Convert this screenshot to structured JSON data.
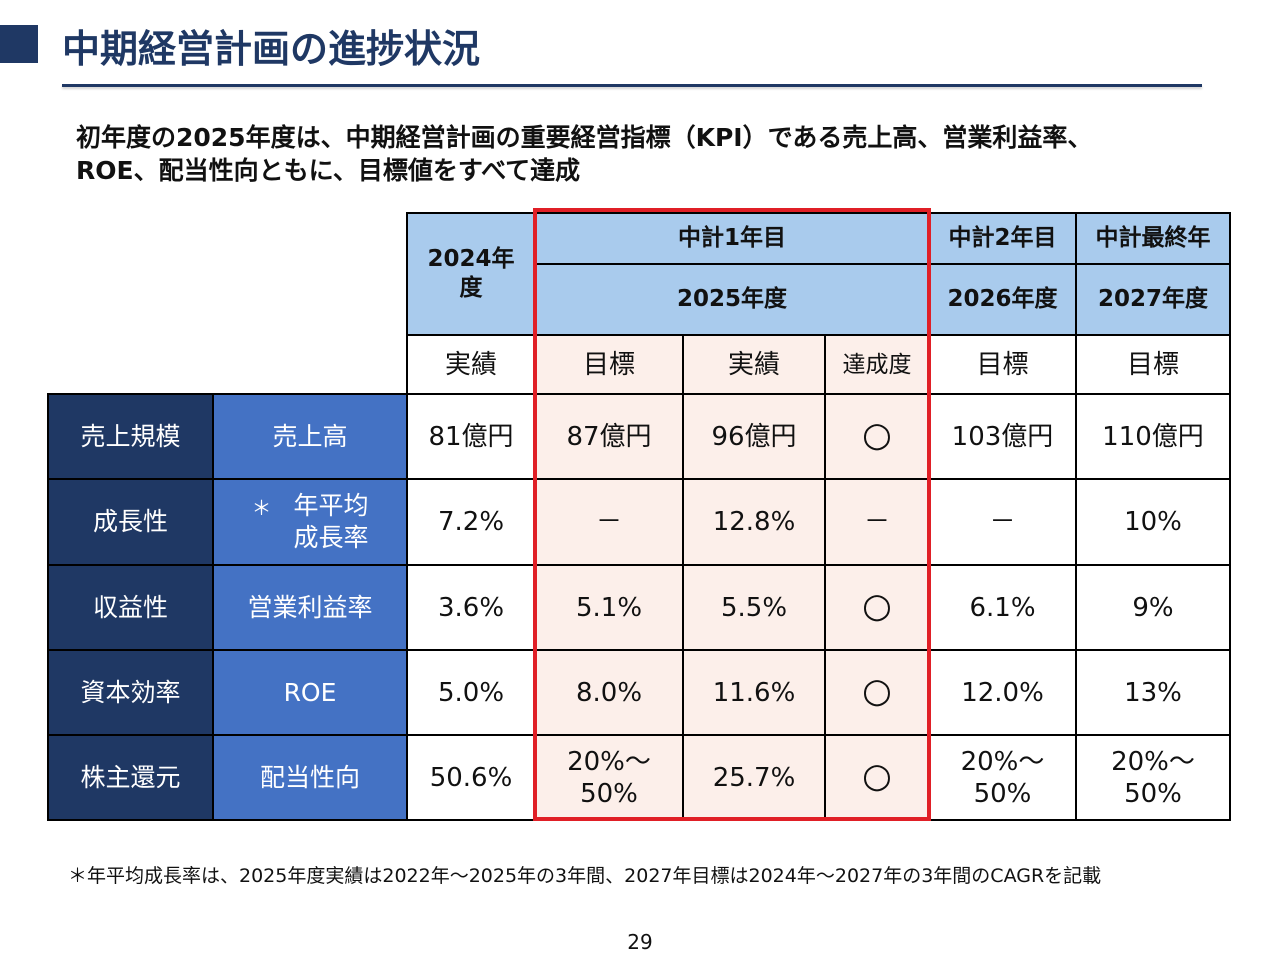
{
  "title": "中期経営計画の進捗状況",
  "lead": {
    "line1": "初年度の2025年度は、中期経営計画の重要経営指標（KPI）である売上高、営業利益率、",
    "line2": "ROE、配当性向ともに、目標値をすべて達成"
  },
  "table": {
    "plan_year1": "中計1年目",
    "plan_year2": "中計2年目",
    "plan_final": "中計最終年",
    "fy2024": "2024年度",
    "fy2025": "2025年度",
    "fy2026": "2026年度",
    "fy2027": "2027年度",
    "sub": {
      "actual_2024": "実績",
      "target_2025": "目標",
      "actual_2025": "実績",
      "achievement": "達成度",
      "target_2026": "目標",
      "target_2027": "目標"
    },
    "rows": [
      {
        "category": "売上規模",
        "indicator": "売上高",
        "actual_2024": "81億円",
        "target_2025": "87億円",
        "actual_2025": "96億円",
        "achieved": "○",
        "target_2026": "103億円",
        "target_2027": "110億円"
      },
      {
        "category": "成長性",
        "indicator_star": "＊",
        "indicator_line1": "年平均",
        "indicator_line2": "成長率",
        "actual_2024": "7.2%",
        "target_2025": "－",
        "actual_2025": "12.8%",
        "achieved": "－",
        "target_2026": "－",
        "target_2027": "10%"
      },
      {
        "category": "収益性",
        "indicator": "営業利益率",
        "actual_2024": "3.6%",
        "target_2025": "5.1%",
        "actual_2025": "5.5%",
        "achieved": "○",
        "target_2026": "6.1%",
        "target_2027": "9%"
      },
      {
        "category": "資本効率",
        "indicator": "ROE",
        "actual_2024": "5.0%",
        "target_2025": "8.0%",
        "actual_2025": "11.6%",
        "achieved": "○",
        "target_2026": "12.0%",
        "target_2027": "13%"
      },
      {
        "category": "株主還元",
        "indicator": "配当性向",
        "actual_2024": "50.6%",
        "target_2025_line1": "20%～",
        "target_2025_line2": "50%",
        "actual_2025": "25.7%",
        "achieved": "○",
        "target_2026_line1": "20%～",
        "target_2026_line2": "50%",
        "target_2027_line1": "20%～",
        "target_2027_line2": "50%"
      }
    ]
  },
  "footnote": "＊年平均成長率は、2025年度実績は2022年～2025年の3年間、2027年目標は2024年～2027年の3年間のCAGRを記載",
  "page_number": "29",
  "colors": {
    "navy": "#1f3864",
    "blue": "#4472c4",
    "header_blue": "#a9cbed",
    "highlight_pink": "#fcefea",
    "red_frame": "#e01f26"
  }
}
